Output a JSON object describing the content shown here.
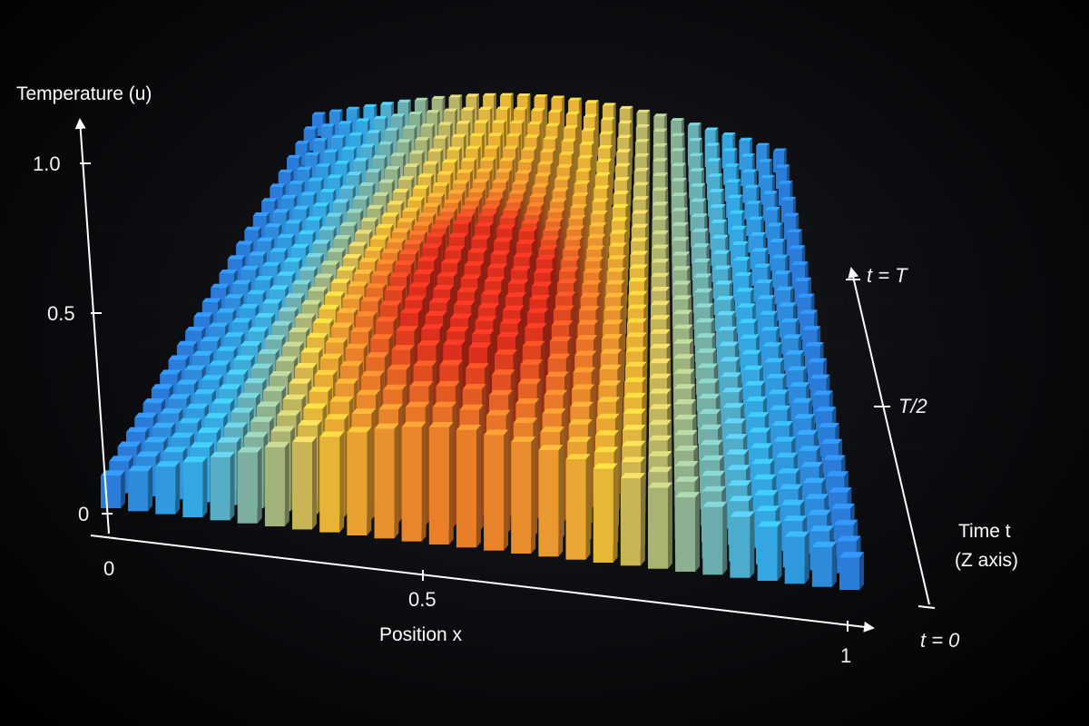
{
  "chart_data": {
    "type": "bar3d",
    "title": "",
    "xlabel": "Position x",
    "ylabel": "Temperature (u)",
    "zlabel_line1": "Time t",
    "zlabel_line2": "(Z axis)",
    "x_ticks": [
      "0",
      "0.5",
      "1"
    ],
    "y_ticks": [
      "0",
      "0.5",
      "1.0"
    ],
    "z_ticks": [
      "t = 0",
      "T/2",
      "t = T"
    ],
    "xlim": [
      0,
      1
    ],
    "ylim": [
      0,
      1.0
    ],
    "z_range": [
      "0",
      "T"
    ],
    "grid": {
      "x_count": 28,
      "t_count": 26
    },
    "peak": {
      "x": 0.45,
      "t_fraction": 0.35,
      "u": 0.9
    },
    "colors": {
      "cold": "#1f4fd6",
      "cool": "#38b3ef",
      "mid": "#f5c13a",
      "warm": "#f5812a",
      "hot": "#e8331f",
      "axis": "#ffffff"
    }
  }
}
